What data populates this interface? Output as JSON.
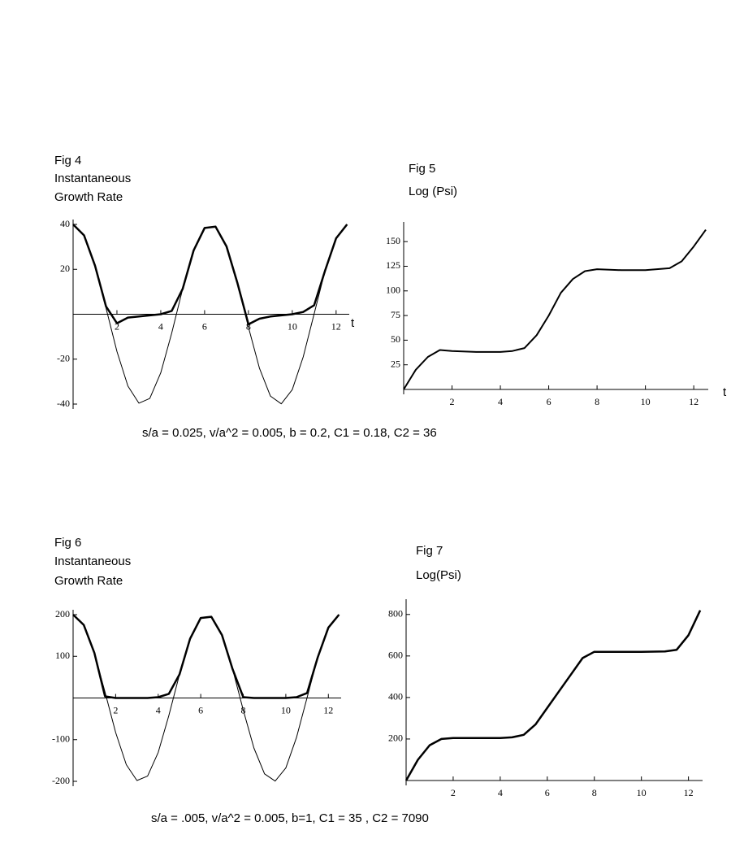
{
  "chart_data": [
    {
      "type": "line",
      "title": "Fig 4",
      "subtitle": [
        "Instantaneous",
        "Growth Rate"
      ],
      "x_label": "t",
      "x": [
        0,
        0.5,
        1,
        1.5,
        2,
        2.5,
        3,
        3.5,
        4,
        4.5,
        5,
        5.5,
        6,
        6.5,
        7,
        7.5,
        8,
        8.5,
        9,
        9.5,
        10,
        10.5,
        11,
        11.5,
        12,
        12.5
      ],
      "series": [
        {
          "color": "#000000",
          "width": 1,
          "values": [
            40,
            35.1,
            21.6,
            2.8,
            -16.6,
            -32.0,
            -39.6,
            -37.5,
            -26.1,
            -8.4,
            11.3,
            28.4,
            38.4,
            39.0,
            30.2,
            13.8,
            -5.8,
            -24.0,
            -36.4,
            -39.9,
            -33.6,
            -19.0,
            0.2,
            19.5,
            33.8,
            40.0
          ]
        },
        {
          "color": "#000000",
          "width": 2.5,
          "values": [
            40,
            35.1,
            21.6,
            3.5,
            -4,
            -1.5,
            -1,
            -0.5,
            0,
            1.5,
            11.3,
            28.4,
            38.4,
            39,
            30.2,
            13.8,
            -4.5,
            -2,
            -1,
            -0.5,
            0,
            1,
            4,
            19.5,
            33.8,
            40
          ]
        }
      ],
      "xlim": [
        0,
        12.6
      ],
      "xticks": [
        2,
        4,
        6,
        8,
        10,
        12
      ],
      "ylim": [
        -40,
        40
      ],
      "yticks": [
        40,
        20,
        -20,
        -40
      ]
    },
    {
      "type": "line",
      "title": "Fig 5",
      "subtitle": [
        "Log (Psi)"
      ],
      "x_label": "t",
      "x": [
        0,
        0.5,
        1,
        1.5,
        2,
        3,
        4,
        4.5,
        5,
        5.5,
        6,
        6.5,
        7,
        7.5,
        8,
        9,
        10,
        11,
        11.5,
        12,
        12.5
      ],
      "series": [
        {
          "color": "#000000",
          "width": 2,
          "values": [
            0,
            20,
            33,
            40,
            39,
            38,
            38,
            39,
            42,
            55,
            75,
            98,
            112,
            120,
            122,
            121,
            121,
            123,
            130,
            145,
            162
          ]
        }
      ],
      "xlim": [
        0,
        12.6
      ],
      "xticks": [
        2,
        4,
        6,
        8,
        10,
        12
      ],
      "ylim": [
        0,
        165
      ],
      "yticks": [
        25,
        50,
        75,
        100,
        125,
        150
      ]
    },
    {
      "type": "line",
      "title": "Fig 6",
      "subtitle": [
        "Instantaneous",
        "Growth Rate"
      ],
      "x": [
        0,
        0.5,
        1,
        1.5,
        2,
        2.5,
        3,
        3.5,
        4,
        4.5,
        5,
        5.5,
        6,
        6.5,
        7,
        7.5,
        8,
        8.5,
        9,
        9.5,
        10,
        10.5,
        11,
        11.5,
        12,
        12.5
      ],
      "series": [
        {
          "color": "#000000",
          "width": 1,
          "values": [
            200,
            175.5,
            108,
            14,
            -83,
            -160,
            -198,
            -187.5,
            -130.5,
            -42,
            56.5,
            142,
            192,
            195,
            151,
            69,
            -29,
            -120,
            -182,
            -199.5,
            -168,
            -95,
            1,
            97.5,
            169,
            200
          ]
        },
        {
          "color": "#000000",
          "width": 2.5,
          "values": [
            200,
            175.5,
            108,
            4,
            0,
            0,
            0,
            0,
            2,
            10,
            56.5,
            142,
            192,
            195,
            151,
            69,
            2,
            0,
            0,
            0,
            0,
            2,
            12,
            97.5,
            169,
            200
          ]
        }
      ],
      "xlim": [
        0,
        12.6
      ],
      "xticks": [
        2,
        4,
        6,
        8,
        10,
        12
      ],
      "ylim": [
        -200,
        200
      ],
      "yticks": [
        200,
        100,
        -100,
        -200
      ]
    },
    {
      "type": "line",
      "title": "Fig 7",
      "subtitle": [
        "Log(Psi)"
      ],
      "x": [
        0,
        0.5,
        1,
        1.5,
        2,
        3,
        4,
        4.5,
        5,
        5.5,
        6,
        6.5,
        7,
        7.5,
        8,
        9,
        10,
        11,
        11.5,
        12,
        12.5
      ],
      "series": [
        {
          "color": "#000000",
          "width": 2.5,
          "values": [
            0,
            100,
            170,
            200,
            205,
            205,
            205,
            208,
            220,
            270,
            350,
            430,
            510,
            590,
            620,
            620,
            620,
            622,
            630,
            700,
            820
          ]
        }
      ],
      "xlim": [
        0,
        12.6
      ],
      "xticks": [
        2,
        4,
        6,
        8,
        10,
        12
      ],
      "ylim": [
        0,
        850
      ],
      "yticks": [
        200,
        400,
        600,
        800
      ]
    }
  ],
  "captions": [
    "s/a = 0.025,   v/a^2 = 0.005,  b = 0.2,   C1 = 0.18,   C2 = 36",
    "s/a = .005,   v/a^2 = 0.005,   b=1,   C1 = 35 ,   C2 = 7090"
  ]
}
